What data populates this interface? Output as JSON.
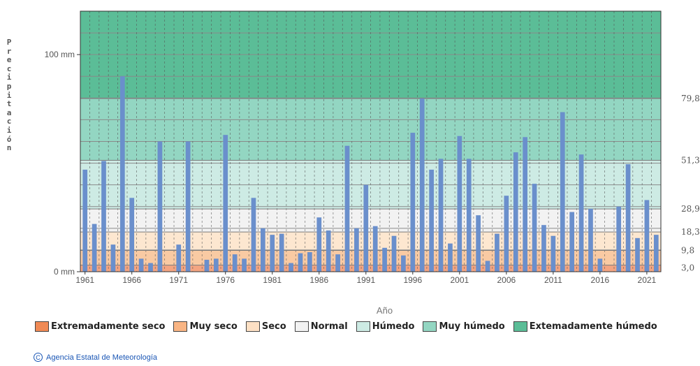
{
  "chart_data": {
    "type": "bar",
    "xlabel": "Año",
    "ylabel": "Precipitación",
    "y_ticks": [
      {
        "value": 0,
        "label": "0 mm"
      },
      {
        "value": 100,
        "label": "100 mm"
      }
    ],
    "ylim": [
      0,
      120
    ],
    "x_tick_labels": [
      "1961",
      "1966",
      "1971",
      "1976",
      "1981",
      "1986",
      "1991",
      "1996",
      "2001",
      "2006",
      "2011",
      "2016",
      "2021"
    ],
    "bands": [
      {
        "name": "Extremadamente seco",
        "from": 0,
        "to": 3.0,
        "color": "#f4a582"
      },
      {
        "name": "Muy seco",
        "from": 3.0,
        "to": 9.8,
        "color": "#f9caa3"
      },
      {
        "name": "Seco",
        "from": 9.8,
        "to": 18.3,
        "color": "#fde7d0"
      },
      {
        "name": "Normal",
        "from": 18.3,
        "to": 28.9,
        "color": "#f2f2f2"
      },
      {
        "name": "Húmedo",
        "from": 28.9,
        "to": 51.3,
        "color": "#cdebe4"
      },
      {
        "name": "Muy húmedo",
        "from": 51.3,
        "to": 79.8,
        "color": "#93d6c2"
      },
      {
        "name": "Extemadamente húmedo",
        "from": 79.8,
        "to": 120,
        "color": "#5bbd97"
      }
    ],
    "threshold_labels": [
      "79,8",
      "51,3",
      "28,9",
      "18,3",
      "9,8",
      "3,0"
    ],
    "threshold_values": [
      79.8,
      51.3,
      28.9,
      18.3,
      9.8,
      3.0
    ],
    "bar_color": "#6a8fcc",
    "series": [
      {
        "x": [
          1961,
          1962,
          1963,
          1964,
          1965,
          1966,
          1967,
          1968,
          1969,
          1970,
          1971,
          1972,
          1973,
          1974,
          1975,
          1976,
          1977,
          1978,
          1979,
          1980,
          1981,
          1982,
          1983,
          1984,
          1985,
          1986,
          1987,
          1988,
          1989,
          1990,
          1991,
          1992,
          1993,
          1994,
          1995,
          1996,
          1997,
          1998,
          1999,
          2000,
          2001,
          2002,
          2003,
          2004,
          2005,
          2006,
          2007,
          2008,
          2009,
          2010,
          2011,
          2012,
          2013,
          2014,
          2015,
          2016,
          2017,
          2018,
          2019,
          2020,
          2021,
          2022
        ],
        "values": [
          47.0,
          22.0,
          51.0,
          12.5,
          90.0,
          34.0,
          6.0,
          4.0,
          60.0,
          0,
          12.5,
          60.0,
          0,
          5.5,
          6.0,
          63.0,
          8.0,
          6.0,
          34.0,
          20.0,
          17.0,
          17.5,
          4.0,
          8.5,
          9.0,
          25.0,
          19.0,
          8.0,
          58.0,
          20.0,
          40.0,
          21.0,
          11.0,
          16.5,
          7.5,
          64.0,
          79.8,
          47.0,
          52.0,
          13.0,
          62.5,
          52.0,
          26.0,
          5.0,
          17.5,
          35.0,
          55.0,
          62.0,
          40.5,
          21.5,
          16.5,
          73.5,
          27.5,
          54.0,
          29.0,
          6.0,
          0,
          30.0,
          49.5,
          15.5,
          33.0,
          17.0
        ]
      }
    ]
  },
  "legend": [
    {
      "label": "Extremadamente seco",
      "color": "#f08a55"
    },
    {
      "label": "Muy seco",
      "color": "#f9b584"
    },
    {
      "label": "Seco",
      "color": "#fde0c4"
    },
    {
      "label": "Normal",
      "color": "#f2f2f2"
    },
    {
      "label": "Húmedo",
      "color": "#cdebe4"
    },
    {
      "label": "Muy húmedo",
      "color": "#93d6c2"
    },
    {
      "label": "Extemadamente húmedo",
      "color": "#5bbd97"
    }
  ],
  "footer": {
    "copyright_symbol": "C",
    "text": "Agencia Estatal de Meteorología"
  }
}
